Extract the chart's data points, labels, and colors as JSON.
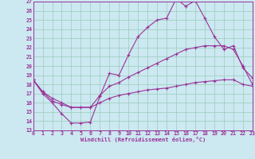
{
  "xlabel": "Windchill (Refroidissement éolien,°C)",
  "bg_color": "#cce8f0",
  "line_color": "#993399",
  "grid_color": "#99ccbb",
  "ylim": [
    13,
    27
  ],
  "xlim": [
    0,
    23
  ],
  "yticks": [
    13,
    14,
    15,
    16,
    17,
    18,
    19,
    20,
    21,
    22,
    23,
    24,
    25,
    26,
    27
  ],
  "xticks": [
    0,
    1,
    2,
    3,
    4,
    5,
    6,
    7,
    8,
    9,
    10,
    11,
    12,
    13,
    14,
    15,
    16,
    17,
    18,
    19,
    20,
    21,
    22,
    23
  ],
  "line1_x": [
    0,
    1,
    2,
    3,
    4,
    5,
    6,
    7,
    8,
    9,
    10,
    11,
    12,
    13,
    14,
    15,
    16,
    17,
    18,
    19,
    20,
    21,
    22,
    23
  ],
  "line1_y": [
    18.5,
    17.0,
    16.0,
    14.8,
    13.8,
    13.8,
    13.9,
    16.7,
    19.2,
    19.0,
    21.2,
    23.2,
    24.2,
    25.0,
    25.2,
    27.3,
    26.5,
    27.1,
    25.2,
    23.2,
    21.8,
    22.2,
    19.8,
    18.7
  ],
  "line2_x": [
    0,
    1,
    2,
    3,
    4,
    5,
    6,
    7,
    8,
    9,
    10,
    11,
    12,
    13,
    14,
    15,
    16,
    17,
    18,
    19,
    20,
    21,
    22,
    23
  ],
  "line2_y": [
    18.5,
    17.2,
    16.5,
    16.0,
    15.5,
    15.5,
    15.5,
    16.8,
    17.8,
    18.2,
    18.8,
    19.3,
    19.8,
    20.3,
    20.8,
    21.3,
    21.8,
    22.0,
    22.2,
    22.2,
    22.2,
    21.8,
    20.0,
    18.0
  ],
  "line3_x": [
    0,
    1,
    2,
    3,
    4,
    5,
    6,
    7,
    8,
    9,
    10,
    11,
    12,
    13,
    14,
    15,
    16,
    17,
    18,
    19,
    20,
    21,
    22,
    23
  ],
  "line3_y": [
    18.5,
    17.2,
    16.2,
    15.8,
    15.5,
    15.5,
    15.5,
    16.0,
    16.5,
    16.8,
    17.0,
    17.2,
    17.4,
    17.5,
    17.6,
    17.8,
    18.0,
    18.2,
    18.3,
    18.4,
    18.5,
    18.5,
    18.0,
    17.8
  ],
  "label_fontsize": 5.0,
  "tick_fontsize": 4.8
}
